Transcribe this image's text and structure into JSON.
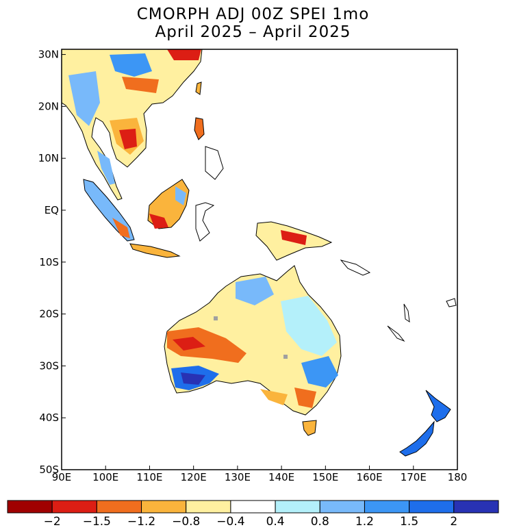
{
  "title": {
    "line1": "CMORPH ADJ 00Z SPEI 1mo",
    "line2": "April 2025 – April 2025"
  },
  "map": {
    "lon_range": [
      90,
      180
    ],
    "lat_range": [
      -50,
      31
    ],
    "lat_ticks": [
      {
        "value": 30,
        "label": "30N"
      },
      {
        "value": 20,
        "label": "20N"
      },
      {
        "value": 10,
        "label": "10N"
      },
      {
        "value": 0,
        "label": "EQ"
      },
      {
        "value": -10,
        "label": "10S"
      },
      {
        "value": -20,
        "label": "20S"
      },
      {
        "value": -30,
        "label": "30S"
      },
      {
        "value": -40,
        "label": "40S"
      },
      {
        "value": -50,
        "label": "50S"
      }
    ],
    "lon_ticks": [
      {
        "value": 90,
        "label": "90E"
      },
      {
        "value": 100,
        "label": "100E"
      },
      {
        "value": 110,
        "label": "110E"
      },
      {
        "value": 120,
        "label": "120E"
      },
      {
        "value": 130,
        "label": "130E"
      },
      {
        "value": 140,
        "label": "140E"
      },
      {
        "value": 150,
        "label": "150E"
      },
      {
        "value": 160,
        "label": "160E"
      },
      {
        "value": 170,
        "label": "170E"
      },
      {
        "value": 180,
        "label": "180"
      }
    ],
    "frame_color": "#000000"
  },
  "legend": {
    "bins": [
      {
        "color": "#a00000"
      },
      {
        "color": "#dc1e14"
      },
      {
        "color": "#f06e1e"
      },
      {
        "color": "#fab43c"
      },
      {
        "color": "#fff0a0"
      },
      {
        "color": "#ffffff"
      },
      {
        "color": "#b4f0fa"
      },
      {
        "color": "#78b9fa"
      },
      {
        "color": "#3c96f5"
      },
      {
        "color": "#1e6eeb"
      },
      {
        "color": "#2832b4"
      }
    ],
    "labels": [
      "−2",
      "−1.5",
      "−1.2",
      "−0.8",
      "−0.4",
      "0.4",
      "0.8",
      "1.2",
      "1.5",
      "2"
    ]
  },
  "colors": {
    "severe_dry": "#a00000",
    "dry": "#dc1e14",
    "moderate_dry": "#f06e1e",
    "mild_dry": "#fab43c",
    "near_normal_dry": "#fff0a0",
    "near_normal_wet": "#b4f0fa",
    "mild_wet": "#78b9fa",
    "moderate_wet": "#3c96f5",
    "wet": "#1e6eeb",
    "severe_wet": "#2832b4",
    "missing": "#a0a0a0"
  }
}
